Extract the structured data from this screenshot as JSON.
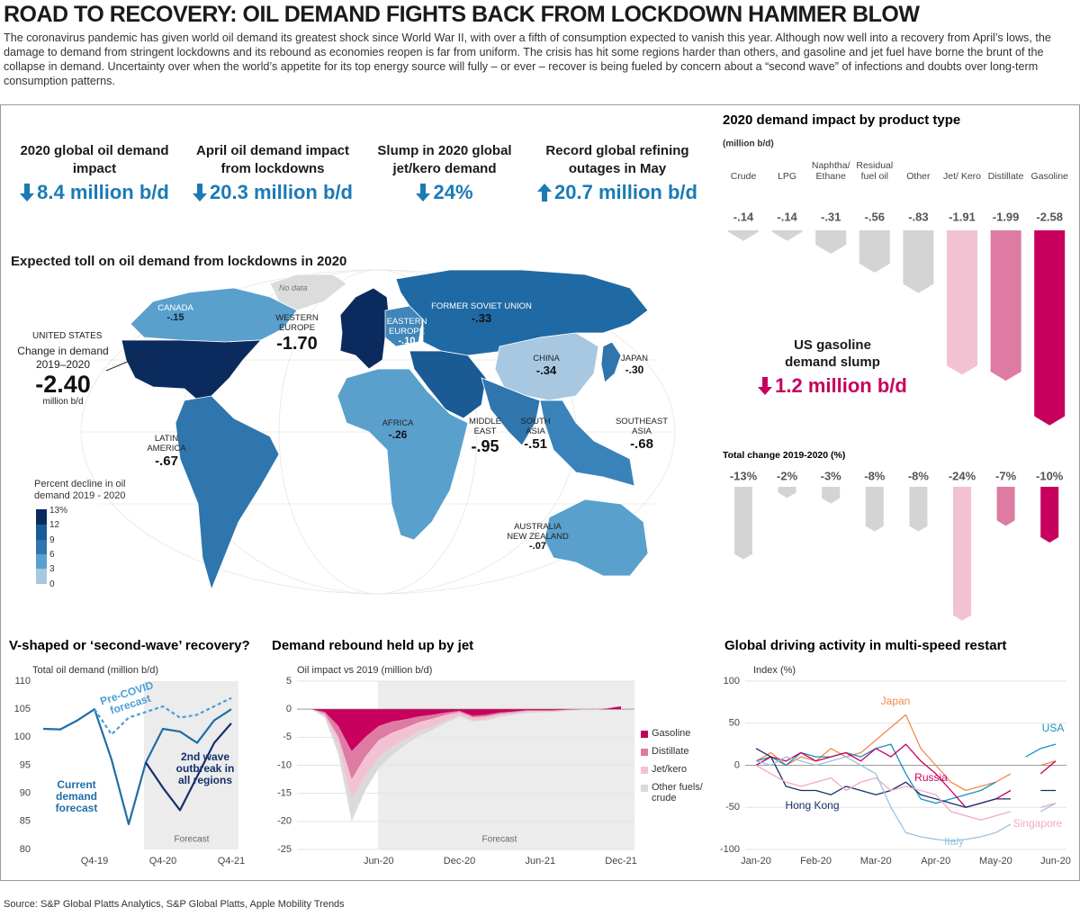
{
  "header": {
    "title": "ROAD TO RECOVERY: OIL DEMAND FIGHTS BACK FROM LOCKDOWN HAMMER BLOW",
    "description": "The coronavirus pandemic has given world oil demand its greatest shock since World War II, with over a fifth of consumption expected to vanish this year. Although now well into a recovery from April’s lows, the damage to demand from stringent lockdowns and its rebound as economies reopen is far from uniform. The crisis has hit some regions harder than others, and gasoline and jet fuel have borne the brunt of the collapse in demand. Uncertainty over when the world’s appetite for its top energy source will fully – or ever – recover is being fueled by concern about a “second wave” of infections and doubts over long-term consumption patterns."
  },
  "kpis": [
    {
      "label": "2020 global oil demand impact",
      "value": "8.4 million b/d"
    },
    {
      "label": "April oil demand impact from lockdowns",
      "value": "20.3 million b/d"
    },
    {
      "label": "Slump in 2020 global jet/kero demand",
      "value": "24%"
    },
    {
      "label": "Record global refining outages in May",
      "value": "20.7 million b/d"
    }
  ],
  "map": {
    "title": "Expected toll on oil demand from lockdowns in 2020",
    "no_data": "No data",
    "united_states": {
      "name": "UNITED STATES",
      "note": "Change in demand 2019–2020",
      "value": "-2.40",
      "unit": "million b/d"
    },
    "regions": [
      {
        "name": "CANADA",
        "value": "-.15"
      },
      {
        "name": "WESTERN EUROPE",
        "value": "-1.70"
      },
      {
        "name": "EASTERN EUROPE",
        "value": "-.10"
      },
      {
        "name": "FORMER SOVIET UNION",
        "value": "-.33"
      },
      {
        "name": "CHINA",
        "value": "-.34"
      },
      {
        "name": "JAPAN",
        "value": "-.30"
      },
      {
        "name": "MIDDLE EAST",
        "value": "-.95"
      },
      {
        "name": "SOUTH ASIA",
        "value": "-.51"
      },
      {
        "name": "SOUTHEAST ASIA",
        "value": "-.68"
      },
      {
        "name": "AFRICA",
        "value": "-.26"
      },
      {
        "name": "LATIN AMERICA",
        "value": "-.67"
      },
      {
        "name": "AUSTRALIA NEW ZEALAND",
        "value": "-.07"
      }
    ],
    "legend": {
      "title": "Percent decline in oil demand 2019 - 2020",
      "ticks": [
        "13%",
        "12",
        "9",
        "6",
        "3",
        "0"
      ]
    }
  },
  "us_gasoline": {
    "label": "US gasoline demand slump",
    "value": "1.2 million b/d"
  },
  "chart_data": [
    {
      "type": "bar",
      "title": "2020 demand impact by product type",
      "subtitle": "(million b/d)",
      "categories": [
        "Crude",
        "LPG",
        "Naphtha/ Ethane",
        "Residual fuel oil",
        "Other",
        "Jet/ Kero",
        "Distillate",
        "Gasoline"
      ],
      "values": [
        -0.14,
        -0.14,
        -0.31,
        -0.56,
        -0.83,
        -1.91,
        -1.99,
        -2.58
      ],
      "value_labels": [
        "-.14",
        "-.14",
        "-.31",
        "-.56",
        "-.83",
        "-1.91",
        "-1.99",
        "-2.58"
      ],
      "colors": [
        "#d4d4d4",
        "#d4d4d4",
        "#d4d4d4",
        "#d4d4d4",
        "#d4d4d4",
        "#f2c2d3",
        "#de7ba3",
        "#c7005d"
      ]
    },
    {
      "type": "bar",
      "title": "Total change 2019-2020 (%)",
      "values": [
        -13,
        -2,
        -3,
        -8,
        -8,
        -24,
        -7,
        -10
      ],
      "value_labels": [
        "-13%",
        "-2%",
        "-3%",
        "-8%",
        "-8%",
        "-24%",
        "-7%",
        "-10%"
      ],
      "colors": [
        "#d4d4d4",
        "#d4d4d4",
        "#d4d4d4",
        "#d4d4d4",
        "#d4d4d4",
        "#f2c2d3",
        "#de7ba3",
        "#c7005d"
      ]
    },
    {
      "type": "line",
      "title": "V-shaped or ‘second-wave’ recovery?",
      "subtitle": "Total oil demand (million b/d)",
      "categories": [
        null,
        null,
        null,
        "Q4-19",
        null,
        null,
        null,
        "Q4-20",
        null,
        null,
        null,
        "Q4-21"
      ],
      "series": [
        {
          "name": "Current demand forecast",
          "color": "#1f6ea6",
          "values": [
            101.5,
            101.4,
            103,
            105,
            96,
            84.5,
            95.5,
            101.5,
            101,
            99,
            103,
            105
          ]
        },
        {
          "name": "Pre-COVID forecast",
          "color": "#4a9fd3",
          "dashed": true,
          "values": [
            null,
            null,
            null,
            105,
            100.5,
            103.5,
            104.5,
            105.5,
            103.5,
            104,
            105.5,
            107
          ]
        },
        {
          "name": "2nd wave outbreak in all regions",
          "color": "#16306a",
          "values": [
            null,
            null,
            null,
            null,
            null,
            null,
            95.5,
            91,
            87,
            93,
            99,
            102.5
          ]
        }
      ],
      "ylim": [
        80,
        110
      ],
      "yticks": [
        80,
        85,
        90,
        95,
        100,
        105,
        110
      ],
      "grid": false,
      "forecast_label": "Forecast"
    },
    {
      "type": "area",
      "title": "Demand rebound held up by jet",
      "subtitle": "Oil impact vs 2019 (million b/d)",
      "categories": [
        null,
        null,
        null,
        null,
        null,
        null,
        "Jun-20",
        null,
        null,
        null,
        null,
        null,
        "Dec-20",
        null,
        null,
        null,
        null,
        null,
        "Jun-21",
        null,
        null,
        null,
        null,
        null,
        "Dec-21"
      ],
      "series": [
        {
          "name": "Gasoline",
          "color": "#c7005d",
          "values": [
            0,
            0,
            -0.5,
            -3,
            -7.5,
            -5,
            -3,
            -2.2,
            -1.8,
            -1.3,
            -1,
            -0.6,
            -0.3,
            -1.2,
            -1,
            -0.6,
            -0.4,
            -0.2,
            -0.2,
            -0.2,
            -0.1,
            0,
            0,
            0.2,
            0.5
          ]
        },
        {
          "name": "Distillate",
          "color": "#de7ba3",
          "values": [
            0,
            0,
            -0.3,
            -2,
            -5,
            -3.5,
            -2.5,
            -2,
            -1.5,
            -1,
            -0.7,
            -0.4,
            -0.2,
            -0.3,
            -0.3,
            -0.2,
            -0.2,
            -0.1,
            -0.1,
            -0.1,
            0,
            0,
            0,
            0,
            0
          ]
        },
        {
          "name": "Jet/kero",
          "color": "#f2c2d3",
          "values": [
            0,
            0,
            -0.4,
            -1.5,
            -3.5,
            -3.5,
            -3,
            -2.5,
            -2,
            -1.7,
            -1.4,
            -1,
            -0.6,
            -0.5,
            -0.5,
            -0.4,
            -0.3,
            -0.3,
            -0.2,
            -0.2,
            -0.2,
            -0.2,
            -0.1,
            -0.1,
            0
          ]
        },
        {
          "name": "Other fuels/ crude",
          "color": "#dadada",
          "values": [
            0,
            0,
            -0.3,
            -1.5,
            -4,
            -2.5,
            -2,
            -1.5,
            -1,
            -0.8,
            -0.6,
            -0.4,
            -0.2,
            -0.2,
            -0.2,
            -0.2,
            -0.1,
            -0.1,
            -0.1,
            0,
            0,
            0,
            0,
            0,
            0
          ]
        }
      ],
      "ylim": [
        -25,
        5
      ],
      "yticks": [
        -25,
        -20,
        -15,
        -10,
        -5,
        0,
        5
      ],
      "grid": true,
      "forecast_label": "Forecast"
    },
    {
      "type": "line",
      "title": "Global driving activity in multi-speed restart",
      "subtitle": "Index (%)",
      "categories": [
        "Jan-20",
        null,
        null,
        null,
        "Feb-20",
        null,
        null,
        null,
        "Mar-20",
        null,
        null,
        null,
        "Apr-20",
        null,
        null,
        null,
        "May-20",
        null,
        null,
        null,
        "Jun-20"
      ],
      "series": [
        {
          "name": "Japan",
          "color": "#f08a4b",
          "values": [
            5,
            15,
            0,
            10,
            5,
            20,
            10,
            15,
            30,
            45,
            60,
            20,
            0,
            -20,
            -30,
            -25,
            -20,
            -10,
            null,
            0,
            5
          ]
        },
        {
          "name": "USA",
          "color": "#1b8fc0",
          "values": [
            5,
            10,
            0,
            15,
            10,
            10,
            15,
            10,
            20,
            25,
            -10,
            -40,
            -45,
            -40,
            -35,
            -30,
            -20,
            null,
            10,
            20,
            25
          ]
        },
        {
          "name": "Russia",
          "color": "#c7005d",
          "values": [
            0,
            10,
            5,
            15,
            5,
            10,
            15,
            5,
            20,
            10,
            25,
            5,
            -10,
            -30,
            -50,
            -45,
            -40,
            -30,
            null,
            -10,
            5
          ]
        },
        {
          "name": "Hong Kong",
          "color": "#16306a",
          "values": [
            20,
            10,
            -25,
            -30,
            -30,
            -35,
            -25,
            -30,
            -35,
            -30,
            -20,
            -35,
            -40,
            -45,
            -50,
            -45,
            -40,
            -40,
            null,
            -30,
            -30
          ]
        },
        {
          "name": "Singapore",
          "color": "#f2aac6",
          "values": [
            0,
            -10,
            -20,
            -25,
            -20,
            -15,
            -30,
            -20,
            -15,
            -30,
            -25,
            -30,
            -35,
            -55,
            -60,
            -65,
            -60,
            -55,
            null,
            -50,
            -45
          ]
        },
        {
          "name": "Italy",
          "color": "#9cc3e0",
          "values": [
            5,
            0,
            10,
            5,
            0,
            5,
            10,
            0,
            -10,
            -50,
            -80,
            -85,
            -88,
            -90,
            -88,
            -85,
            -80,
            -70,
            null,
            -55,
            -45
          ]
        }
      ],
      "ylim": [
        -100,
        100
      ],
      "yticks": [
        -100,
        -50,
        0,
        50,
        100
      ],
      "grid": true
    }
  ],
  "source": "Source: S&P Global Platts Analytics, S&P Global Platts, Apple Mobility Trends"
}
